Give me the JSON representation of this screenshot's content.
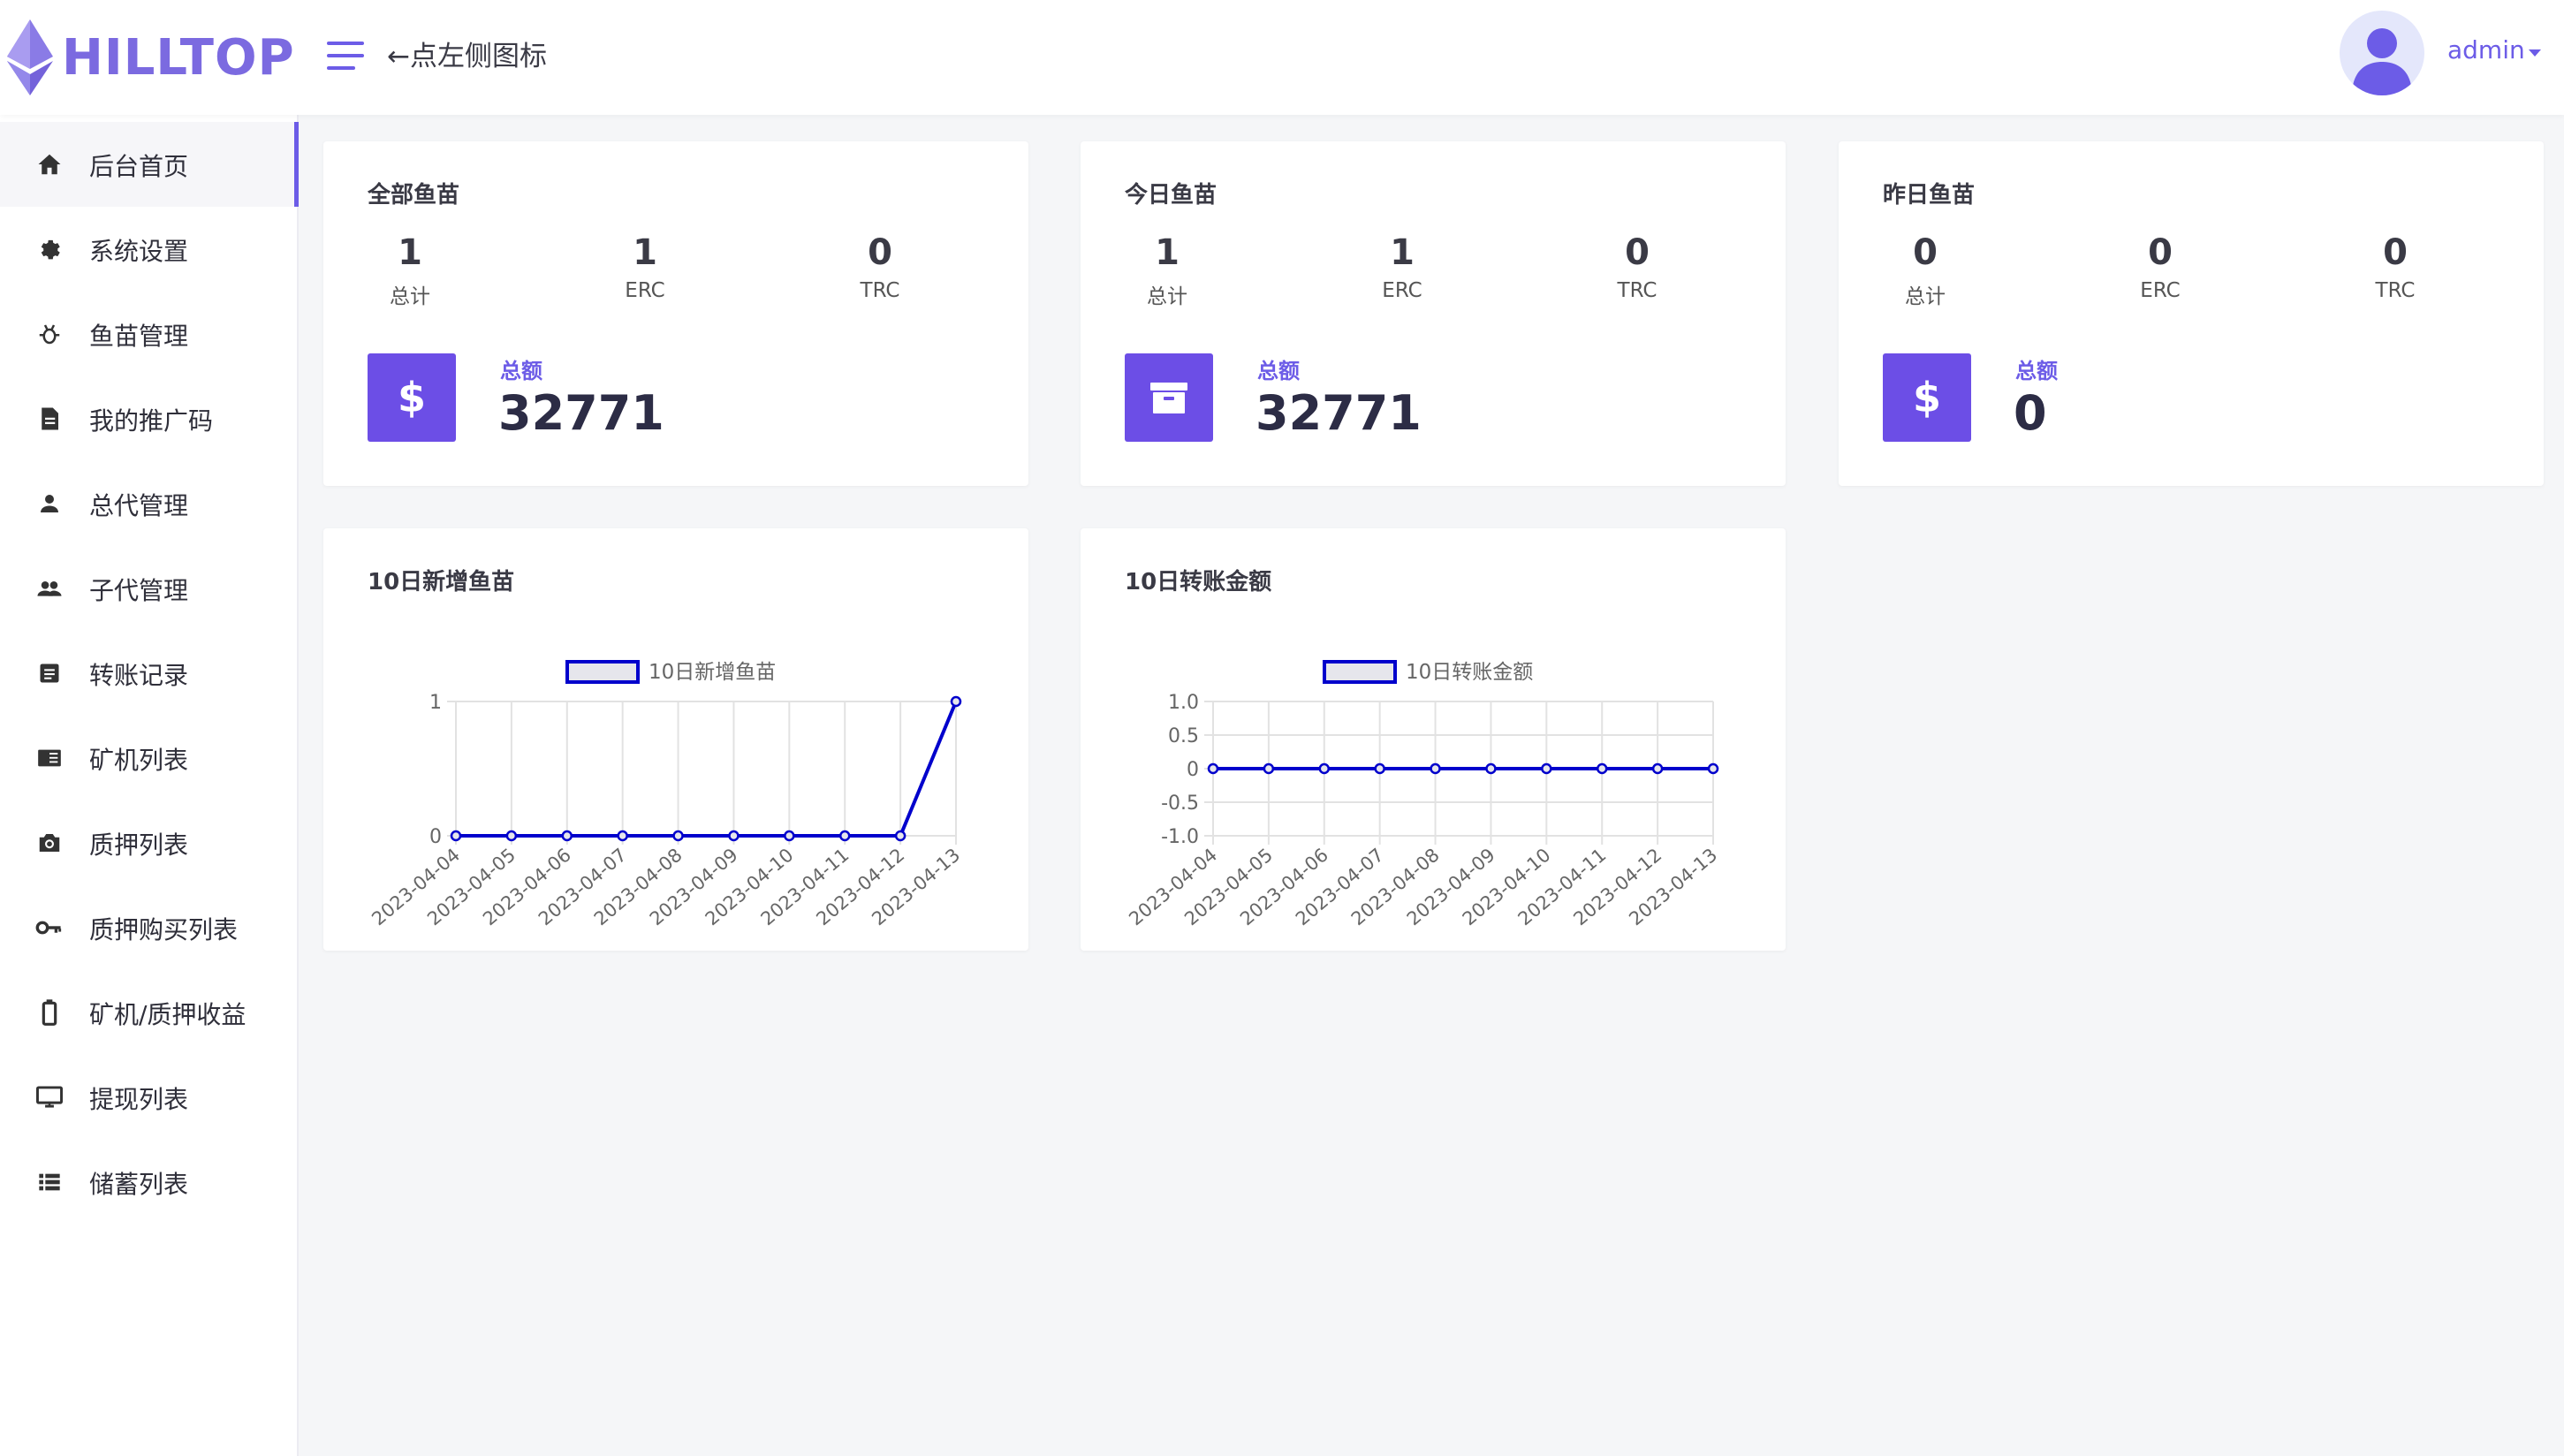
{
  "header": {
    "logo_text": "HILLTOP",
    "hint": "←点左侧图标",
    "user": "admin"
  },
  "sidebar": {
    "items": [
      {
        "label": "后台首页",
        "icon": "home-icon",
        "active": true
      },
      {
        "label": "系统设置",
        "icon": "gear-icon"
      },
      {
        "label": "鱼苗管理",
        "icon": "bug-icon"
      },
      {
        "label": "我的推广码",
        "icon": "document-icon"
      },
      {
        "label": "总代管理",
        "icon": "person-icon"
      },
      {
        "label": "子代管理",
        "icon": "people-icon"
      },
      {
        "label": "转账记录",
        "icon": "list-box-icon"
      },
      {
        "label": "矿机列表",
        "icon": "book-icon"
      },
      {
        "label": "质押列表",
        "icon": "camera-icon"
      },
      {
        "label": "质押购买列表",
        "icon": "key-icon"
      },
      {
        "label": "矿机/质押收益",
        "icon": "battery-icon"
      },
      {
        "label": "提现列表",
        "icon": "monitor-icon"
      },
      {
        "label": "储蓄列表",
        "icon": "list-icon"
      }
    ]
  },
  "cards": [
    {
      "title": "全部鱼苗",
      "stats": [
        {
          "value": "1",
          "label": "总计"
        },
        {
          "value": "1",
          "label": "ERC"
        },
        {
          "value": "0",
          "label": "TRC"
        }
      ],
      "total_label": "总额",
      "total_value": "32771",
      "icon": "dollar-icon"
    },
    {
      "title": "今日鱼苗",
      "stats": [
        {
          "value": "1",
          "label": "总计"
        },
        {
          "value": "1",
          "label": "ERC"
        },
        {
          "value": "0",
          "label": "TRC"
        }
      ],
      "total_label": "总额",
      "total_value": "32771",
      "icon": "archive-icon"
    },
    {
      "title": "昨日鱼苗",
      "stats": [
        {
          "value": "0",
          "label": "总计"
        },
        {
          "value": "0",
          "label": "ERC"
        },
        {
          "value": "0",
          "label": "TRC"
        }
      ],
      "total_label": "总额",
      "total_value": "0",
      "icon": "dollar-icon"
    }
  ],
  "chart_cards": [
    {
      "title": "10日新增鱼苗"
    },
    {
      "title": "10日转账金额"
    }
  ],
  "chart_data": [
    {
      "type": "line",
      "title": "10日新增鱼苗",
      "x": [
        "2023-04-04",
        "2023-04-05",
        "2023-04-06",
        "2023-04-07",
        "2023-04-08",
        "2023-04-09",
        "2023-04-10",
        "2023-04-11",
        "2023-04-12",
        "2023-04-13"
      ],
      "series": [
        {
          "name": "10日新增鱼苗",
          "values": [
            0,
            0,
            0,
            0,
            0,
            0,
            0,
            0,
            0,
            1
          ],
          "color": "#0000cc"
        }
      ],
      "yticks": [
        "0",
        "1"
      ],
      "ylim": [
        0,
        1
      ],
      "grid": true,
      "legend": "top-center"
    },
    {
      "type": "line",
      "title": "10日转账金额",
      "x": [
        "2023-04-04",
        "2023-04-05",
        "2023-04-06",
        "2023-04-07",
        "2023-04-08",
        "2023-04-09",
        "2023-04-10",
        "2023-04-11",
        "2023-04-12",
        "2023-04-13"
      ],
      "series": [
        {
          "name": "10日转账金额",
          "values": [
            0,
            0,
            0,
            0,
            0,
            0,
            0,
            0,
            0,
            0
          ],
          "color": "#0000cc"
        }
      ],
      "yticks": [
        "-1.0",
        "-0.5",
        "0",
        "0.5",
        "1.0"
      ],
      "ylim": [
        -1,
        1
      ],
      "grid": true,
      "legend": "top-center"
    }
  ]
}
